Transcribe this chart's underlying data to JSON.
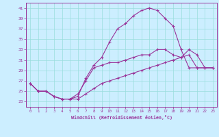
{
  "title": "",
  "xlabel": "Windchill (Refroidissement éolien,°C)",
  "ylabel": "",
  "background_color": "#cceeff",
  "grid_color": "#99dddd",
  "line_color": "#993399",
  "xlim": [
    -0.5,
    23.5
  ],
  "ylim": [
    22,
    42
  ],
  "xticks": [
    0,
    1,
    2,
    3,
    4,
    5,
    6,
    7,
    8,
    9,
    10,
    11,
    12,
    13,
    14,
    15,
    16,
    17,
    18,
    19,
    20,
    21,
    22,
    23
  ],
  "yticks": [
    23,
    25,
    27,
    29,
    31,
    33,
    35,
    37,
    39,
    41
  ],
  "curve1_x": [
    0,
    1,
    2,
    3,
    4,
    5,
    6,
    7,
    8,
    9,
    10,
    11,
    12,
    13,
    14,
    15,
    16,
    17,
    18,
    19,
    20,
    21,
    22,
    23
  ],
  "curve1_y": [
    26.5,
    25.0,
    25.0,
    24.0,
    23.5,
    23.5,
    24.0,
    27.5,
    30.0,
    31.5,
    34.5,
    37.0,
    38.0,
    39.5,
    40.5,
    41.0,
    40.5,
    39.0,
    37.5,
    33.0,
    29.5,
    29.5,
    29.5,
    29.5
  ],
  "curve2_x": [
    0,
    1,
    2,
    3,
    4,
    5,
    6,
    7,
    8,
    9,
    10,
    11,
    12,
    13,
    14,
    15,
    16,
    17,
    18,
    19,
    20,
    21,
    22,
    23
  ],
  "curve2_y": [
    26.5,
    25.0,
    25.0,
    24.0,
    23.5,
    23.5,
    24.5,
    27.0,
    29.5,
    30.0,
    30.5,
    30.5,
    31.0,
    31.5,
    32.0,
    32.0,
    33.0,
    33.0,
    32.0,
    31.5,
    33.0,
    32.0,
    29.5,
    29.5
  ],
  "curve3_x": [
    0,
    1,
    2,
    3,
    4,
    5,
    6,
    7,
    8,
    9,
    10,
    11,
    12,
    13,
    14,
    15,
    16,
    17,
    18,
    19,
    20,
    21,
    22,
    23
  ],
  "curve3_y": [
    26.5,
    25.0,
    25.0,
    24.0,
    23.5,
    23.5,
    23.5,
    24.5,
    25.5,
    26.5,
    27.0,
    27.5,
    28.0,
    28.5,
    29.0,
    29.5,
    30.0,
    30.5,
    31.0,
    31.5,
    32.0,
    29.5,
    29.5,
    29.5
  ]
}
